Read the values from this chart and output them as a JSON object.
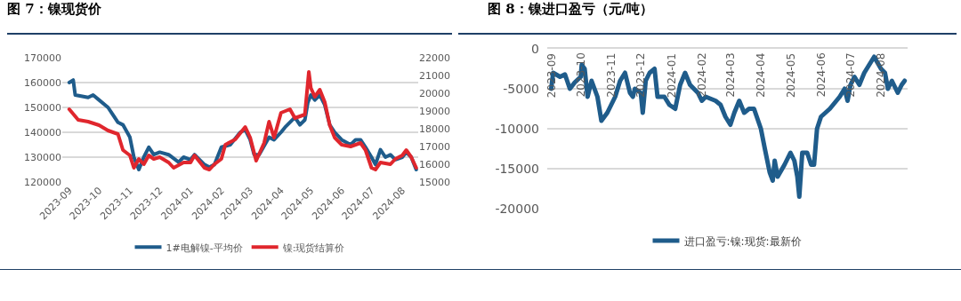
{
  "chart_data": [
    {
      "type": "line",
      "title": "图 7：镍现货价",
      "xlim": [
        "2023-08-25",
        "2024-08-17"
      ],
      "xticks": [
        "2023-09",
        "2023-10",
        "2023-11",
        "2023-12",
        "2024-01",
        "2024-02",
        "2024-03",
        "2024-04",
        "2024-05",
        "2024-06",
        "2024-07",
        "2024-08"
      ],
      "ylim": [
        120000,
        170000
      ],
      "yticks": [
        120000,
        130000,
        140000,
        150000,
        160000,
        170000
      ],
      "y2lim": [
        15000,
        22000
      ],
      "y2ticks": [
        15000,
        16000,
        17000,
        18000,
        19000,
        20000,
        21000,
        22000
      ],
      "grid": "y",
      "legend": "bottom",
      "marker": "none",
      "line_style": "solid",
      "series": [
        {
          "name": "1#电解镍-平均价",
          "color": "#1f5c8b",
          "x": [
            "2023-09-01",
            "2023-09-05",
            "2023-09-07",
            "2023-09-20",
            "2023-09-25",
            "2023-10-01",
            "2023-10-10",
            "2023-10-15",
            "2023-10-20",
            "2023-10-25",
            "2023-11-01",
            "2023-11-05",
            "2023-11-10",
            "2023-11-15",
            "2023-11-20",
            "2023-11-25",
            "2023-12-01",
            "2023-12-10",
            "2023-12-20",
            "2023-12-25",
            "2024-01-01",
            "2024-01-05",
            "2024-01-15",
            "2024-01-20",
            "2024-01-25",
            "2024-02-01",
            "2024-02-10",
            "2024-02-20",
            "2024-02-25",
            "2024-03-01",
            "2024-03-05",
            "2024-03-10",
            "2024-03-20",
            "2024-03-25",
            "2024-04-01",
            "2024-04-05",
            "2024-04-15",
            "2024-04-20",
            "2024-04-25",
            "2024-04-28",
            "2024-05-01",
            "2024-05-05",
            "2024-05-10",
            "2024-05-15",
            "2024-05-20",
            "2024-05-25",
            "2024-06-01",
            "2024-06-10",
            "2024-06-15",
            "2024-06-20",
            "2024-06-25",
            "2024-07-01",
            "2024-07-05",
            "2024-07-10",
            "2024-07-15",
            "2024-07-20",
            "2024-07-25",
            "2024-08-01",
            "2024-08-05",
            "2024-08-10",
            "2024-08-15"
          ],
          "values": [
            160000,
            161000,
            155000,
            154000,
            155000,
            153000,
            150000,
            147000,
            144000,
            143000,
            138000,
            130000,
            125000,
            130000,
            134000,
            131000,
            132000,
            131000,
            128000,
            130000,
            129000,
            131000,
            127000,
            126000,
            127000,
            134000,
            135000,
            140000,
            141000,
            137000,
            131000,
            131000,
            138000,
            137000,
            140000,
            142000,
            146000,
            143000,
            145000,
            152000,
            155000,
            153000,
            155000,
            151000,
            143000,
            140000,
            137000,
            135000,
            137000,
            137000,
            134000,
            130000,
            127000,
            133000,
            130000,
            131000,
            129000,
            130000,
            132000,
            130000,
            125000
          ]
        },
        {
          "name": "镍:现货结算价",
          "color": "#e0262d",
          "axis": "y2",
          "x": [
            "2023-09-01",
            "2023-09-10",
            "2023-09-20",
            "2023-10-01",
            "2023-10-10",
            "2023-10-20",
            "2023-10-25",
            "2023-11-01",
            "2023-11-05",
            "2023-11-10",
            "2023-11-15",
            "2023-11-20",
            "2023-11-25",
            "2023-12-01",
            "2023-12-10",
            "2023-12-15",
            "2023-12-25",
            "2024-01-01",
            "2024-01-05",
            "2024-01-15",
            "2024-01-20",
            "2024-01-25",
            "2024-02-01",
            "2024-02-05",
            "2024-02-15",
            "2024-02-25",
            "2024-03-01",
            "2024-03-07",
            "2024-03-15",
            "2024-03-20",
            "2024-03-25",
            "2024-04-01",
            "2024-04-10",
            "2024-04-15",
            "2024-04-25",
            "2024-04-29",
            "2024-05-01",
            "2024-05-05",
            "2024-05-10",
            "2024-05-15",
            "2024-05-20",
            "2024-05-25",
            "2024-06-01",
            "2024-06-10",
            "2024-06-20",
            "2024-06-25",
            "2024-07-01",
            "2024-07-05",
            "2024-07-10",
            "2024-07-20",
            "2024-07-25",
            "2024-08-01",
            "2024-08-05",
            "2024-08-10",
            "2024-08-15"
          ],
          "values": [
            19100,
            18500,
            18400,
            18200,
            17900,
            17700,
            16800,
            16500,
            15800,
            16300,
            16000,
            16500,
            16300,
            16400,
            16100,
            15800,
            16100,
            16100,
            16500,
            15800,
            15700,
            16000,
            16300,
            17100,
            17400,
            18100,
            17500,
            16200,
            17200,
            18400,
            17500,
            18900,
            19100,
            18600,
            18800,
            21200,
            20300,
            19800,
            20200,
            19500,
            18200,
            17500,
            17100,
            17000,
            17200,
            16800,
            15800,
            15700,
            16100,
            16000,
            16300,
            16500,
            16800,
            16400,
            15800
          ]
        }
      ]
    },
    {
      "type": "line",
      "title": "图 8：镍进口盈亏（元/吨）",
      "xlim": [
        "2023-08-28",
        "2024-08-28"
      ],
      "xticks": [
        "2023-09",
        "2023-10",
        "2023-11",
        "2023-12",
        "2024-01",
        "2024-02",
        "2024-03",
        "2024-04",
        "2024-05",
        "2024-06",
        "2024-07",
        "2024-08"
      ],
      "ylim": [
        -20000,
        0
      ],
      "yticks": [
        -20000,
        -15000,
        -10000,
        -5000,
        0
      ],
      "grid": "y",
      "legend": "bottom",
      "marker": "none",
      "line_style": "solid",
      "series": [
        {
          "name": "进口盈亏:镍:现货:最新价",
          "color": "#1f5c8b",
          "x": [
            "2023-09-01",
            "2023-09-03",
            "2023-09-10",
            "2023-09-15",
            "2023-09-20",
            "2023-09-25",
            "2023-10-01",
            "2023-10-02",
            "2023-10-05",
            "2023-10-08",
            "2023-10-12",
            "2023-10-18",
            "2023-10-22",
            "2023-10-28",
            "2023-11-05",
            "2023-11-10",
            "2023-11-15",
            "2023-11-20",
            "2023-11-23",
            "2023-11-25",
            "2023-12-01",
            "2023-12-03",
            "2023-12-06",
            "2023-12-10",
            "2023-12-15",
            "2023-12-18",
            "2023-12-25",
            "2023-12-30",
            "2024-01-05",
            "2024-01-10",
            "2024-01-15",
            "2024-01-20",
            "2024-01-28",
            "2024-02-01",
            "2024-02-05",
            "2024-02-15",
            "2024-02-20",
            "2024-02-25",
            "2024-03-01",
            "2024-03-05",
            "2024-03-10",
            "2024-03-15",
            "2024-03-20",
            "2024-03-25",
            "2024-04-01",
            "2024-04-05",
            "2024-04-10",
            "2024-04-13",
            "2024-04-15",
            "2024-04-18",
            "2024-04-25",
            "2024-05-01",
            "2024-05-05",
            "2024-05-08",
            "2024-05-10",
            "2024-05-13",
            "2024-05-18",
            "2024-05-22",
            "2024-05-25",
            "2024-05-28",
            "2024-06-01",
            "2024-06-10",
            "2024-06-20",
            "2024-06-25",
            "2024-06-28",
            "2024-07-01",
            "2024-07-05",
            "2024-07-10",
            "2024-07-15",
            "2024-07-20",
            "2024-07-25",
            "2024-08-01",
            "2024-08-05",
            "2024-08-08",
            "2024-08-12",
            "2024-08-18",
            "2024-08-22",
            "2024-08-25"
          ],
          "values": [
            -5000,
            -3000,
            -3500,
            -3200,
            -5000,
            -4200,
            -3500,
            -2000,
            -2500,
            -6000,
            -4000,
            -6000,
            -9000,
            -8000,
            -6000,
            -4000,
            -3000,
            -5500,
            -6000,
            -5000,
            -5500,
            -8000,
            -4000,
            -3000,
            -2500,
            -6000,
            -6000,
            -7000,
            -7500,
            -4500,
            -3000,
            -4500,
            -5500,
            -6500,
            -6000,
            -6500,
            -7000,
            -8500,
            -9500,
            -8000,
            -6500,
            -8000,
            -7500,
            -7500,
            -10000,
            -12500,
            -15500,
            -16500,
            -14000,
            -16000,
            -14500,
            -13000,
            -14000,
            -16000,
            -18500,
            -13000,
            -13000,
            -14500,
            -14500,
            -10000,
            -8500,
            -7500,
            -6000,
            -5000,
            -6500,
            -4500,
            -3500,
            -4500,
            -3000,
            -2000,
            -1000,
            -2500,
            -3000,
            -5000,
            -4000,
            -5500,
            -4500,
            -4000
          ]
        }
      ]
    }
  ]
}
